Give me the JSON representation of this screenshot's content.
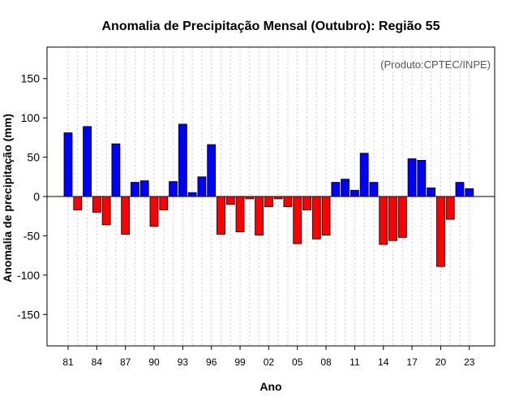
{
  "chart_data": {
    "type": "bar",
    "title": "Anomalia de Precipitação Mensal (Outubro): Região 55",
    "xlabel": "Ano",
    "ylabel": "Anomalia de precipitação (mm)",
    "source_note": "(Produto:CPTEC/INPE)",
    "ylim": [
      -190,
      190
    ],
    "yticks": [
      -150,
      -100,
      -50,
      0,
      50,
      100,
      150
    ],
    "xtick_labels": [
      "81",
      "84",
      "87",
      "90",
      "93",
      "96",
      "99",
      "02",
      "05",
      "08",
      "11",
      "14",
      "17",
      "20",
      "23"
    ],
    "xtick_every": 3,
    "grid": true,
    "positive_color": "#0000ff",
    "negative_color": "#ff0000",
    "categories": [
      "81",
      "82",
      "83",
      "84",
      "85",
      "86",
      "87",
      "88",
      "89",
      "90",
      "91",
      "92",
      "93",
      "94",
      "95",
      "96",
      "97",
      "98",
      "99",
      "00",
      "01",
      "02",
      "03",
      "04",
      "05",
      "06",
      "07",
      "08",
      "09",
      "10",
      "11",
      "12",
      "13",
      "14",
      "15",
      "16",
      "17",
      "18",
      "19",
      "20",
      "21",
      "22",
      "23"
    ],
    "values": [
      81,
      -17,
      89,
      -20,
      -36,
      67,
      -48,
      18,
      20,
      -38,
      -17,
      19,
      92,
      5,
      25,
      66,
      -48,
      -10,
      -45,
      -3,
      -49,
      -13,
      -3,
      -13,
      -60,
      -17,
      -54,
      -49,
      18,
      22,
      8,
      55,
      18,
      -61,
      -56,
      -52,
      48,
      46,
      11,
      -89,
      -29,
      18,
      10
    ]
  }
}
